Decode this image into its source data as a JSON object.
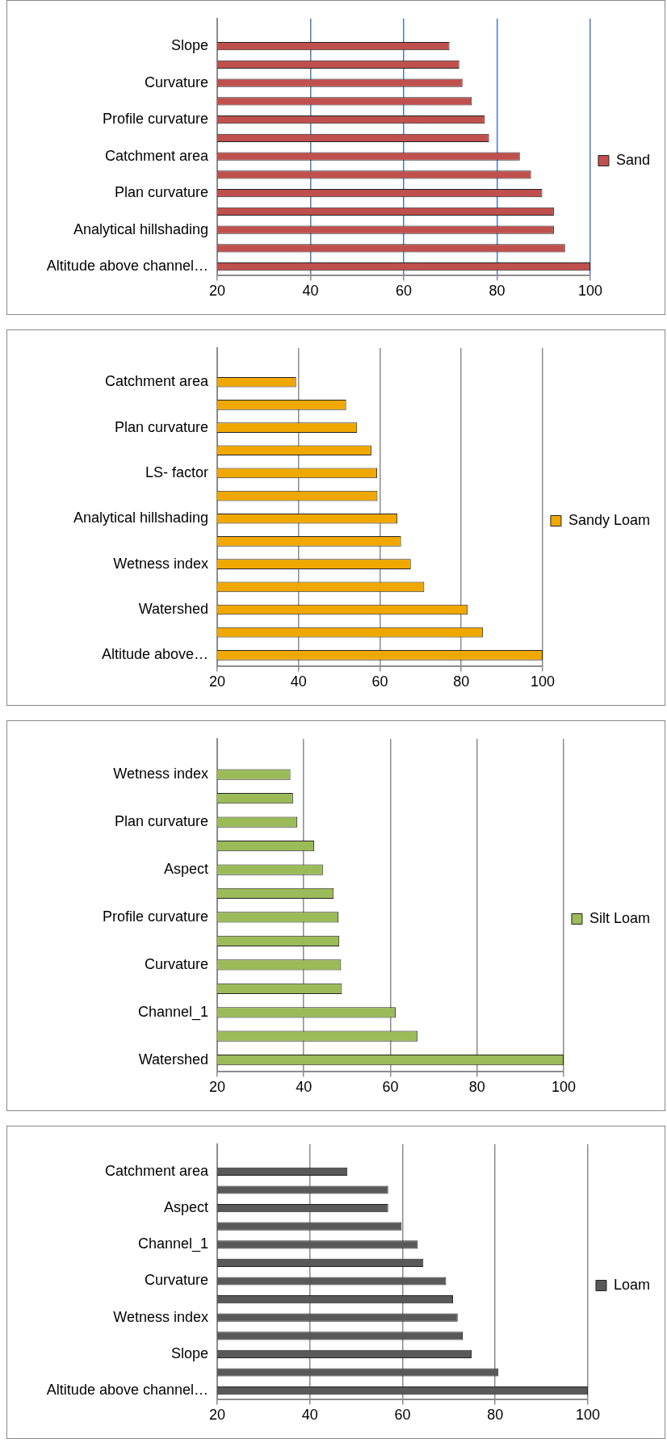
{
  "chart_data": [
    {
      "type": "bar",
      "orientation": "horizontal",
      "categories": [
        null,
        "Slope",
        null,
        "Curvature",
        null,
        "Profile curvature",
        null,
        "Catchment area",
        null,
        "Plan curvature",
        null,
        "Analytical hillshading",
        null,
        "Altitude above channel…"
      ],
      "series": [
        {
          "name": "Sand",
          "color": "#c0504d",
          "values": [
            null,
            69.8,
            71.9,
            72.6,
            74.6,
            77.4,
            78.3,
            84.9,
            87.3,
            89.7,
            92.2,
            92.2,
            94.6,
            100
          ]
        }
      ],
      "xlim": [
        20,
        100
      ],
      "xticks": [
        20,
        40,
        60,
        80,
        100
      ],
      "grid": "x",
      "legend": "right"
    },
    {
      "type": "bar",
      "orientation": "horizontal",
      "categories": [
        null,
        "Catchment area",
        null,
        "Plan curvature",
        null,
        "LS- factor",
        null,
        "Analytical hillshading",
        null,
        "Wetness index",
        null,
        "Watershed",
        null,
        "Altitude above…"
      ],
      "series": [
        {
          "name": "Sandy Loam",
          "color": "#f0a800",
          "values": [
            null,
            39.4,
            51.7,
            54.4,
            57.9,
            59.3,
            59.4,
            64.3,
            65.2,
            67.6,
            70.9,
            81.6,
            85.3,
            100
          ]
        }
      ],
      "xlim": [
        20,
        100
      ],
      "xticks": [
        20,
        40,
        60,
        80,
        100
      ],
      "grid": "x",
      "legend": "right"
    },
    {
      "type": "bar",
      "orientation": "horizontal",
      "categories": [
        null,
        "Wetness index",
        null,
        "Plan curvature",
        null,
        "Aspect",
        null,
        "Profile curvature",
        null,
        "Curvature",
        null,
        "Channel_1",
        null,
        "Watershed"
      ],
      "series": [
        {
          "name": "Silt Loam",
          "color": "#9bbb59",
          "values": [
            null,
            36.9,
            37.5,
            38.5,
            42.4,
            44.4,
            46.9,
            48.0,
            48.2,
            48.6,
            48.8,
            61.2,
            66.3,
            100
          ]
        }
      ],
      "xlim": [
        20,
        100
      ],
      "xticks": [
        20,
        40,
        60,
        80,
        100
      ],
      "grid": "x",
      "legend": "right"
    },
    {
      "type": "bar",
      "orientation": "horizontal",
      "categories": [
        null,
        "Catchment area",
        null,
        "Aspect",
        null,
        "Channel_1",
        null,
        "Curvature",
        null,
        "Wetness index",
        null,
        "Slope",
        null,
        "Altitude above channel…"
      ],
      "series": [
        {
          "name": "Loam",
          "color": "#595959",
          "values": [
            null,
            48.1,
            56.9,
            56.9,
            59.8,
            63.3,
            64.5,
            69.4,
            70.9,
            71.9,
            73.0,
            74.9,
            80.7,
            100
          ]
        }
      ],
      "xlim": [
        20,
        100
      ],
      "xticks": [
        20,
        40,
        60,
        80,
        100
      ],
      "grid": "x",
      "legend": "right"
    }
  ]
}
